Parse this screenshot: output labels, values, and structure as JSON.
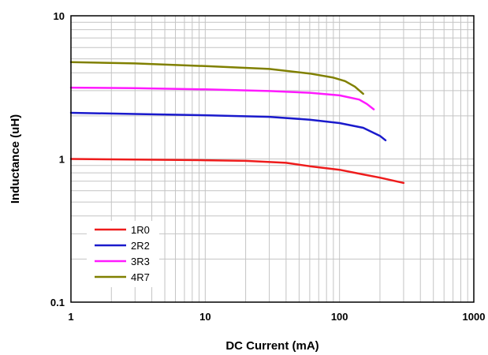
{
  "chart_data": {
    "type": "line",
    "xlabel": "DC Current (mA)",
    "ylabel": "Inductance (uH)",
    "x_scale": "log",
    "y_scale": "log",
    "xlim": [
      1,
      1000
    ],
    "ylim": [
      0.1,
      10
    ],
    "x_ticks": [
      "1",
      "10",
      "100",
      "1000"
    ],
    "y_ticks": [
      "0.1",
      "1",
      "10"
    ],
    "grid": true,
    "legend_position": "bottom-left",
    "series": [
      {
        "name": "1R0",
        "color": "#ee1c1c",
        "x": [
          1,
          3,
          10,
          20,
          40,
          60,
          100,
          150,
          200,
          300
        ],
        "y": [
          1.0,
          0.99,
          0.98,
          0.97,
          0.94,
          0.89,
          0.84,
          0.78,
          0.74,
          0.68
        ]
      },
      {
        "name": "2R2",
        "color": "#1a1acc",
        "x": [
          1,
          3,
          10,
          30,
          60,
          100,
          150,
          200,
          220
        ],
        "y": [
          2.1,
          2.06,
          2.02,
          1.97,
          1.88,
          1.78,
          1.65,
          1.45,
          1.35
        ]
      },
      {
        "name": "3R3",
        "color": "#ff1aff",
        "x": [
          1,
          3,
          10,
          30,
          60,
          100,
          140,
          160,
          180
        ],
        "y": [
          3.15,
          3.12,
          3.06,
          2.98,
          2.9,
          2.78,
          2.6,
          2.42,
          2.22
        ]
      },
      {
        "name": "4R7",
        "color": "#808000",
        "x": [
          1,
          3,
          10,
          30,
          60,
          90,
          110,
          130,
          150
        ],
        "y": [
          4.75,
          4.65,
          4.45,
          4.25,
          3.95,
          3.7,
          3.5,
          3.2,
          2.85
        ]
      }
    ]
  }
}
